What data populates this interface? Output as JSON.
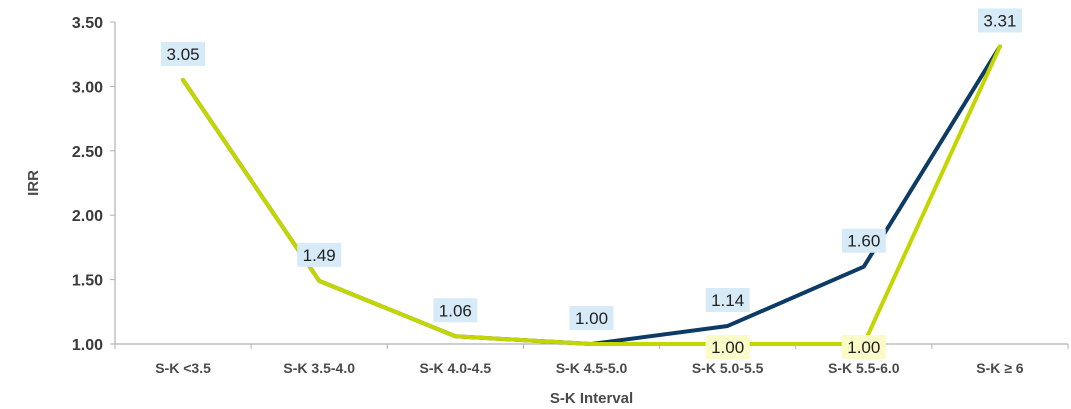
{
  "chart_data": {
    "type": "line",
    "xlabel": "S-K Interval",
    "ylabel": "IRR",
    "ylim": [
      1.0,
      3.5
    ],
    "yticks": [
      "1.00",
      "1.50",
      "2.00",
      "2.50",
      "3.00",
      "3.50"
    ],
    "categories": [
      "S-K <3.5",
      "S-K 3.5-4.0",
      "S-K 4.0-4.5",
      "S-K 4.5-5.0",
      "S-K 5.0-5.5",
      "S-K 5.5-6.0",
      "S-K ≥ 6"
    ],
    "grid": false,
    "legend": "none",
    "series": [
      {
        "values": [
          3.05,
          1.49,
          1.06,
          1.0,
          1.14,
          1.6,
          3.31
        ],
        "labels": [
          "3.05",
          "1.49",
          "1.06",
          "1.00",
          "1.14",
          "1.60",
          "3.31"
        ],
        "color": "#0d3b66",
        "label_bg": "#d6ebf7"
      },
      {
        "values": [
          3.05,
          1.49,
          1.06,
          1.0,
          1.0,
          1.0,
          3.31
        ],
        "labels": [
          "",
          "",
          "",
          "",
          "1.00",
          "1.00",
          ""
        ],
        "color": "#c4d600",
        "label_bg": "#fbfbc8"
      }
    ]
  }
}
